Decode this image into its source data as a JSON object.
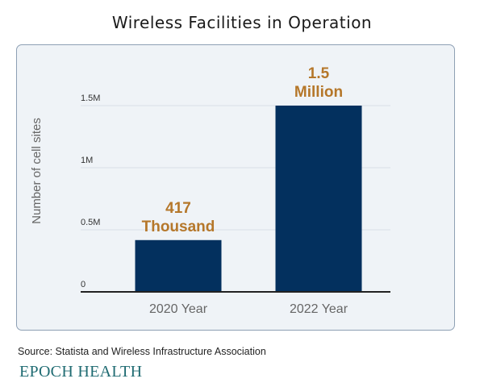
{
  "chart_data": {
    "type": "bar",
    "title": "Wireless Facilities in Operation",
    "ylabel": "Number of cell sites",
    "xlabel": "",
    "categories": [
      "2020 Year",
      "2022 Year"
    ],
    "values": [
      417000,
      1500000
    ],
    "data_labels": [
      [
        "417",
        "Thousand"
      ],
      [
        "1.5",
        "Million"
      ]
    ],
    "yticks": [
      0,
      500000,
      1000000,
      1500000
    ],
    "ytick_labels": [
      "0",
      "0.5M",
      "1M",
      "1.5M"
    ],
    "ylim": [
      0,
      1500000
    ],
    "grid": true,
    "colors": {
      "bar": "#03305e",
      "data_label": "#b5772a",
      "grid": "#dde3ea",
      "axis": "#222222"
    }
  },
  "source": "Source: Statista and Wireless Infrastructure Association",
  "logo": "EPOCH HEALTH"
}
